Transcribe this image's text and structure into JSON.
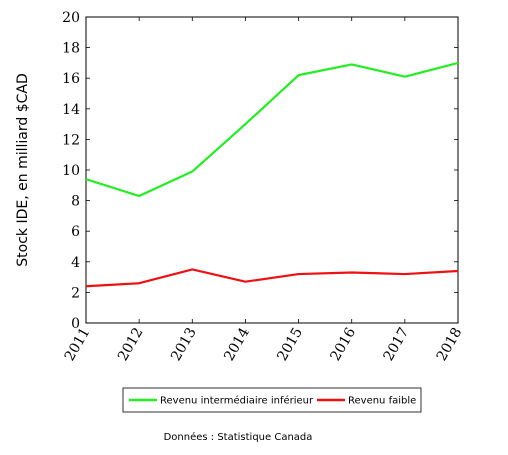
{
  "chart_data": {
    "type": "line",
    "x": [
      2011,
      2012,
      2013,
      2014,
      2015,
      2016,
      2017,
      2018
    ],
    "xticks": [
      "2011",
      "2012",
      "2013",
      "2014",
      "2015",
      "2016",
      "2017",
      "2018"
    ],
    "yticks": [
      "0",
      "2",
      "4",
      "6",
      "8",
      "10",
      "12",
      "14",
      "16",
      "18",
      "20"
    ],
    "ylim": [
      0,
      20
    ],
    "xlim": [
      2011,
      2018
    ],
    "ylabel": "Stock IDE, en milliard $CAD",
    "grid": false,
    "legend_position": "bottom",
    "series": [
      {
        "name": "Revenu intermédiaire inférieur",
        "color": "#22ee22",
        "values": [
          9.4,
          8.3,
          9.9,
          13.0,
          16.2,
          16.9,
          16.1,
          17.0
        ]
      },
      {
        "name": "Revenu faible",
        "color": "#ee1111",
        "values": [
          2.4,
          2.6,
          3.5,
          2.7,
          3.2,
          3.3,
          3.2,
          3.4
        ]
      }
    ],
    "source": "Données : Statistique Canada"
  }
}
